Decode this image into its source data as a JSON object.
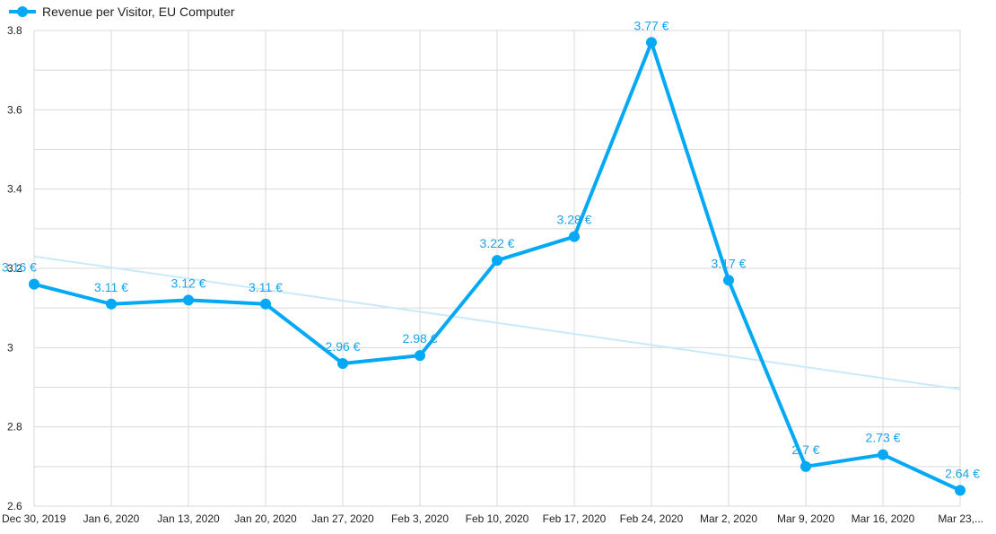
{
  "chart_data": {
    "type": "line",
    "categories": [
      "Dec 30, 2019",
      "Jan 6, 2020",
      "Jan 13, 2020",
      "Jan 20, 2020",
      "Jan 27, 2020",
      "Feb 3, 2020",
      "Feb 10, 2020",
      "Feb 17, 2020",
      "Feb 24, 2020",
      "Mar 2, 2020",
      "Mar 9, 2020",
      "Mar 16, 2020",
      "Mar 23,..."
    ],
    "series": [
      {
        "name": "Revenue per Visitor, EU Computer",
        "values": [
          3.16,
          3.11,
          3.12,
          3.11,
          2.96,
          2.98,
          3.22,
          3.28,
          3.77,
          3.17,
          2.7,
          2.73,
          2.64
        ],
        "labels": [
          "3.16 €",
          "3.11 €",
          "3.12 €",
          "3.11 €",
          "2.96 €",
          "2.98 €",
          "3.22 €",
          "3.28 €",
          "3.77 €",
          "3.17 €",
          "2.7 €",
          "2.73 €",
          "2.64 €"
        ],
        "color": "#03a9f4"
      }
    ],
    "trendline": {
      "start": 3.23,
      "end": 2.895,
      "color": "#c8eaf9"
    },
    "y_ticks": [
      "2.6",
      "2.8",
      "3",
      "3.2",
      "3.4",
      "3.6",
      "3.8"
    ],
    "ylim": [
      2.6,
      3.8
    ],
    "grid": true,
    "legend_position": "top-left"
  }
}
